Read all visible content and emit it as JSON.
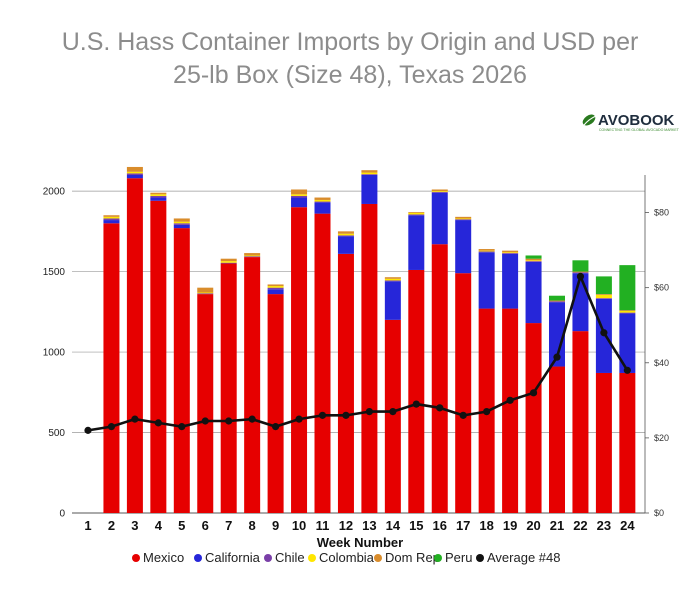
{
  "chart_data": {
    "type": "bar",
    "title_line1": "U.S. Hass Container Imports by Origin and USD per",
    "title_line2": "25-lb Box (Size 48), Texas 2026",
    "xlabel": "Week Number",
    "categories": [
      "1",
      "2",
      "3",
      "4",
      "5",
      "6",
      "7",
      "8",
      "9",
      "10",
      "11",
      "12",
      "13",
      "14",
      "15",
      "16",
      "17",
      "18",
      "19",
      "20",
      "21",
      "22",
      "23",
      "24"
    ],
    "left_axis": {
      "ylim": [
        0,
        2100
      ],
      "ticks": [
        "0",
        "500",
        "1000",
        "1500",
        "2000"
      ]
    },
    "right_axis": {
      "ylim": [
        0,
        90
      ],
      "ticks": [
        "$0",
        "$20",
        "$40",
        "$60",
        "$80"
      ]
    },
    "grid": "horizontal",
    "legend_position": "bottom",
    "series": [
      {
        "name": "Mexico",
        "color": "#e60000",
        "values": [
          0,
          1800,
          2080,
          1940,
          1770,
          1360,
          1550,
          1590,
          1360,
          1900,
          1860,
          1610,
          1920,
          1200,
          1510,
          1670,
          1490,
          1270,
          1270,
          1180,
          910,
          1130,
          870,
          870
        ]
      },
      {
        "name": "California",
        "color": "#2626d9",
        "values": [
          0,
          20,
          20,
          20,
          20,
          0,
          0,
          0,
          30,
          60,
          70,
          110,
          180,
          240,
          340,
          320,
          330,
          350,
          340,
          380,
          400,
          360,
          460,
          370
        ]
      },
      {
        "name": "Chile",
        "color": "#7a3fa8",
        "values": [
          0,
          10,
          10,
          10,
          10,
          5,
          5,
          5,
          10,
          10,
          5,
          5,
          5,
          5,
          5,
          5,
          5,
          5,
          5,
          5,
          5,
          5,
          5,
          5
        ]
      },
      {
        "name": "Colombia",
        "color": "#ffe600",
        "values": [
          0,
          10,
          10,
          10,
          10,
          5,
          10,
          5,
          10,
          10,
          10,
          10,
          10,
          10,
          10,
          5,
          5,
          5,
          5,
          5,
          0,
          0,
          20,
          10
        ]
      },
      {
        "name": "Dom Rep",
        "color": "#d98c2b",
        "values": [
          0,
          10,
          30,
          10,
          20,
          30,
          15,
          15,
          10,
          30,
          15,
          15,
          15,
          10,
          5,
          10,
          10,
          10,
          10,
          10,
          5,
          5,
          5,
          5
        ]
      },
      {
        "name": "Peru",
        "color": "#22b022",
        "values": [
          0,
          0,
          0,
          0,
          0,
          0,
          0,
          0,
          0,
          0,
          0,
          0,
          0,
          0,
          0,
          0,
          0,
          0,
          0,
          20,
          30,
          70,
          110,
          280
        ]
      }
    ],
    "line_series": {
      "name": "Average #48",
      "color": "#111111",
      "axis": "right",
      "values": [
        22,
        23,
        25,
        24,
        23,
        24.5,
        24.5,
        25,
        23,
        25,
        26,
        26,
        27,
        27,
        29,
        28,
        26,
        27,
        30,
        32,
        41.5,
        63,
        48,
        38
      ]
    }
  },
  "logo": {
    "text": "AVOBOOK",
    "tagline": "CONNECTING THE GLOBAL AVOCADO MARKET"
  }
}
